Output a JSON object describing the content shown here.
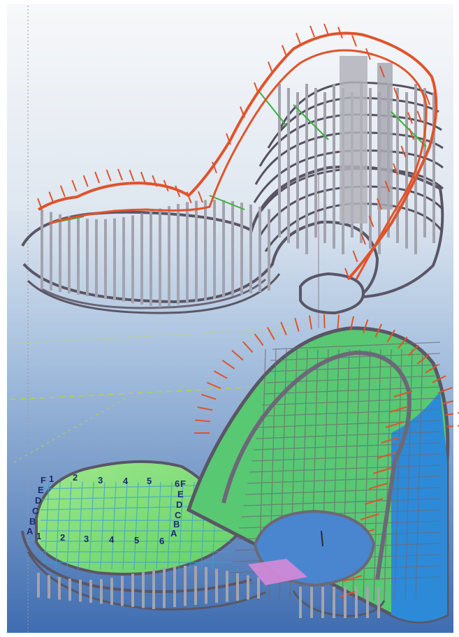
{
  "view": {
    "background_top": "#f4f6f8",
    "background_mid": "#b9cde3",
    "background_bottom": "#4b78b8",
    "frame_color": "#ffffff"
  },
  "colors": {
    "beam": "#6f6b79",
    "beam_dark": "#4f4b59",
    "column": "#a8a8b0",
    "rafter": "#e0532b",
    "bracing": "#3fae3f",
    "slab": "#7ee070",
    "wall_blue": "#2d8ad8",
    "ramp": "#d58ad8",
    "grid_line": "#b8d048",
    "grid_label": "#1d2a6b"
  },
  "grid_labels": {
    "top_numbers": [
      "1",
      "2",
      "3",
      "4",
      "5",
      "6"
    ],
    "top_letters_left": [
      "F",
      "E",
      "D",
      "C",
      "B",
      "A"
    ],
    "top_letters_right": [
      "F",
      "E",
      "D",
      "C",
      "B",
      "A"
    ],
    "bottom_numbers": [
      "1",
      "2",
      "3",
      "4",
      "5",
      "6"
    ]
  }
}
